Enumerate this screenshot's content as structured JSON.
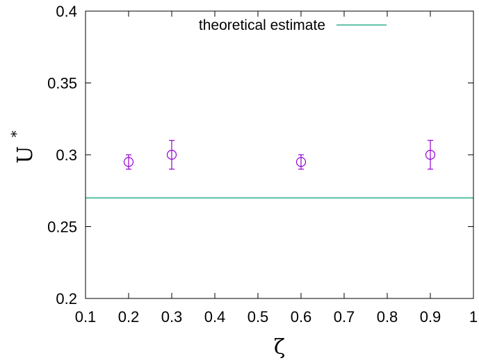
{
  "chart_data": {
    "type": "scatter",
    "title": "",
    "xlabel": "ζ",
    "ylabel": "U",
    "ylabel_superscript": "*",
    "xlim": [
      0.1,
      1.0
    ],
    "ylim": [
      0.2,
      0.4
    ],
    "xticks": [
      "0.1",
      "0.2",
      "0.3",
      "0.4",
      "0.5",
      "0.6",
      "0.7",
      "0.8",
      "0.9",
      "1"
    ],
    "yticks": [
      "0.2",
      "0.25",
      "0.3",
      "0.35",
      "0.4"
    ],
    "grid": false,
    "legend_position": "top-center",
    "series": [
      {
        "marker": "open-circle",
        "color": "#9400d3",
        "points": [
          {
            "x": 0.2,
            "y": 0.295,
            "err": 0.005
          },
          {
            "x": 0.3,
            "y": 0.3,
            "err": 0.01
          },
          {
            "x": 0.6,
            "y": 0.295,
            "err": 0.005
          },
          {
            "x": 0.9,
            "y": 0.3,
            "err": 0.01
          }
        ]
      },
      {
        "name": "theoretical estimate",
        "style": "line",
        "color": "#009e73",
        "y": 0.27
      }
    ]
  }
}
